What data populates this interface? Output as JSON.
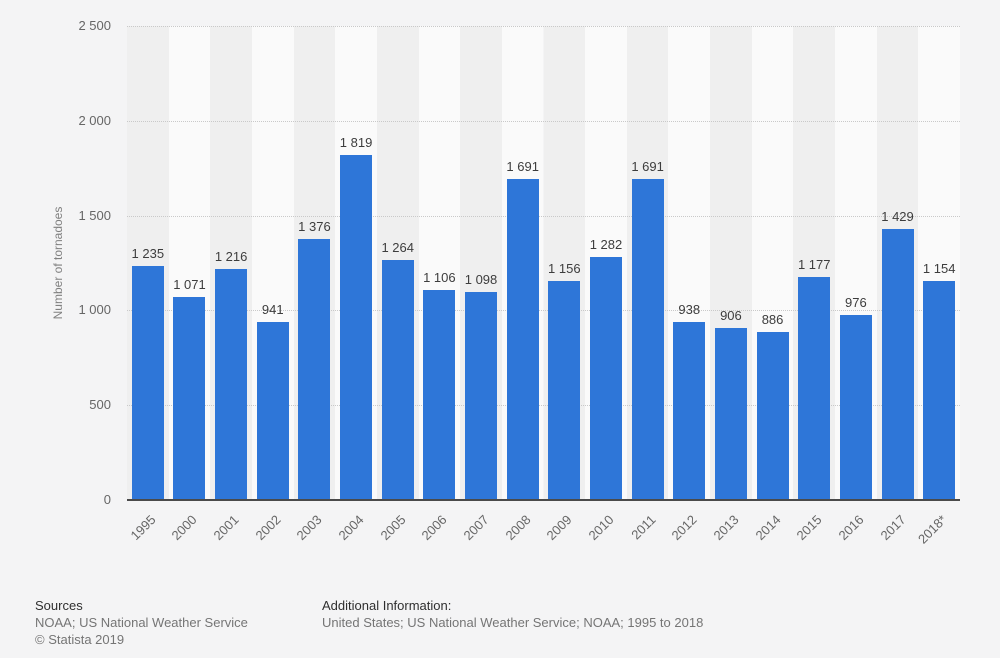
{
  "footer": {
    "sources_heading": "Sources",
    "sources_line": "NOAA; US National Weather Service",
    "copyright": "© Statista 2019",
    "additional_heading": "Additional Information:",
    "additional_line": "United States; US National Weather Service; NOAA; 1995 to 2018"
  },
  "chart_data": {
    "type": "bar",
    "title": "",
    "xlabel": "",
    "ylabel": "Number of tornadoes",
    "categories": [
      "1995",
      "2000",
      "2001",
      "2002",
      "2003",
      "2004",
      "2005",
      "2006",
      "2007",
      "2008",
      "2009",
      "2010",
      "2011",
      "2012",
      "2013",
      "2014",
      "2015",
      "2016",
      "2017",
      "2018*"
    ],
    "values": [
      1235,
      1071,
      1216,
      941,
      1376,
      1819,
      1264,
      1106,
      1098,
      1691,
      1156,
      1282,
      1691,
      938,
      906,
      886,
      1177,
      976,
      1429,
      1154
    ],
    "value_labels": [
      "1 235",
      "1 071",
      "1 216",
      "941",
      "1 376",
      "1 819",
      "1 264",
      "1 106",
      "1 098",
      "1 691",
      "1 156",
      "1 282",
      "1 691",
      "938",
      "906",
      "886",
      "1 177",
      "976",
      "1 429",
      "1 154"
    ],
    "ylim": [
      0,
      2500
    ],
    "yticks": [
      {
        "value": 0,
        "label": "0"
      },
      {
        "value": 500,
        "label": "500"
      },
      {
        "value": 1000,
        "label": "1 000"
      },
      {
        "value": 1500,
        "label": "1 500"
      },
      {
        "value": 2000,
        "label": "2 000"
      },
      {
        "value": 2500,
        "label": "2 500"
      }
    ],
    "grid": "horizontal-dotted",
    "legend": "none",
    "bar_color": "#2e76d8",
    "band_color_even": "#efefef",
    "band_color_odd": "#fafafa",
    "axis_line_color": "#4a4a4a"
  }
}
